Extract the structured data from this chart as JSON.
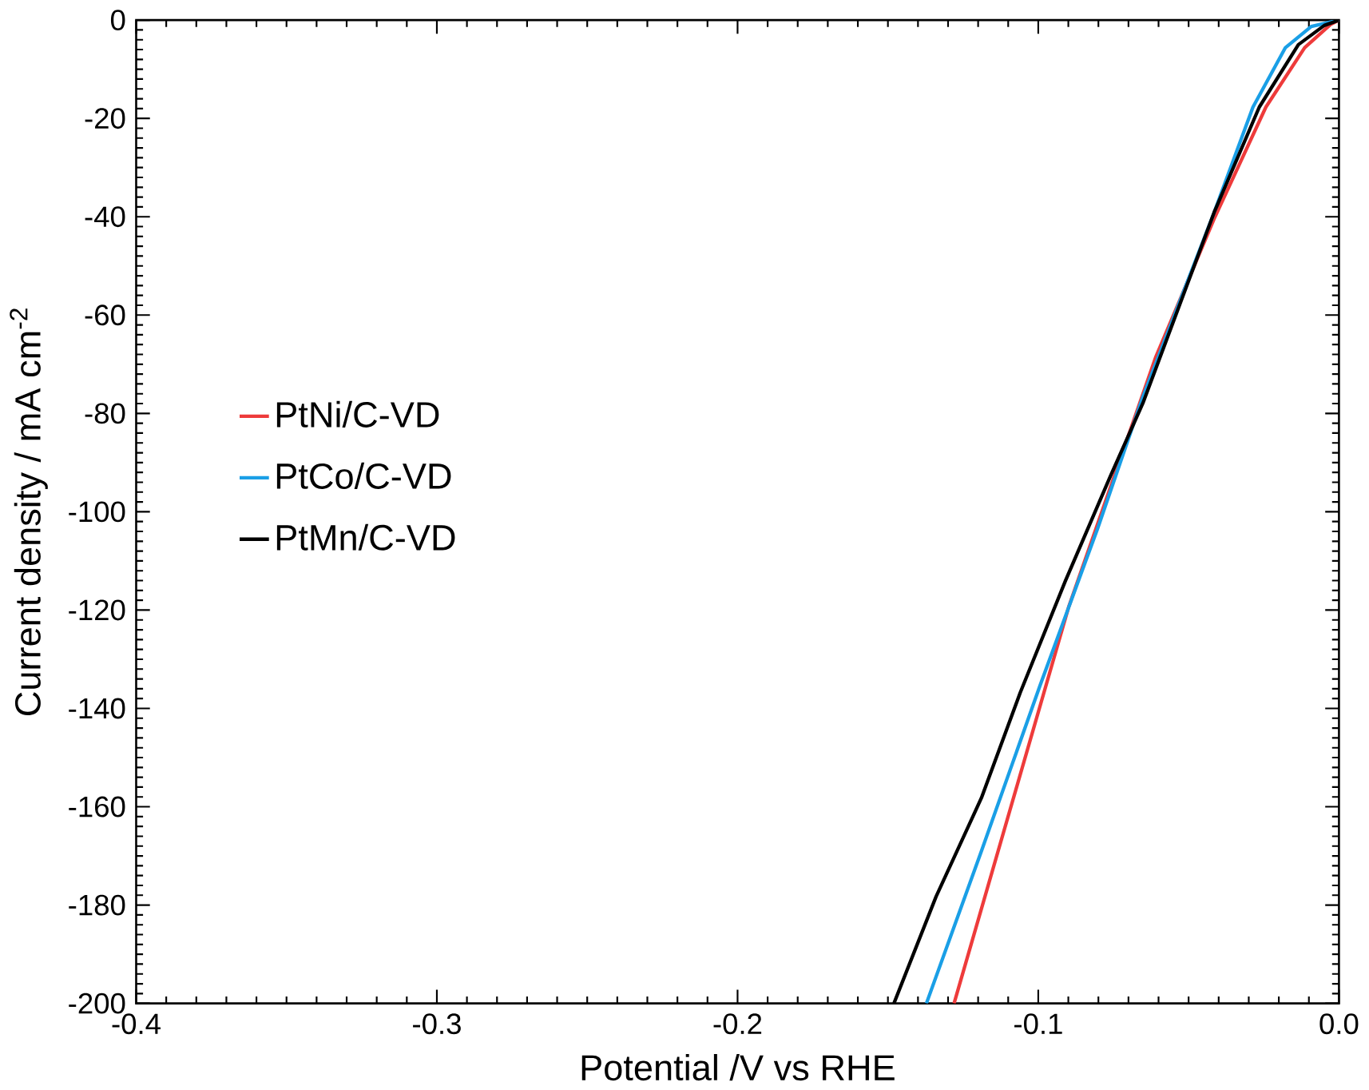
{
  "chart_data": {
    "type": "line",
    "xlabel": "Potential /V vs RHE",
    "ylabel": "Current density / mA cm$^{-2}$",
    "xlim": [
      -0.4,
      0.0
    ],
    "ylim": [
      -200,
      0
    ],
    "xticks": [
      -0.4,
      -0.3,
      -0.2,
      -0.1,
      {
        "value": 0.0,
        "label": "0.0"
      }
    ],
    "yticks": [
      -200,
      -180,
      -160,
      -140,
      -120,
      -100,
      -80,
      -60,
      -40,
      -20,
      0
    ],
    "legend": "left",
    "grid": false,
    "marker": "none",
    "line_style": "solid",
    "series": [
      {
        "name": "PtNi/C-VD",
        "color": "#ee3b3b",
        "x": [
          -0.128,
          -0.0899,
          -0.0609,
          -0.0415,
          -0.0243,
          -0.0114,
          -0.0028,
          0.0
        ],
        "values": [
          -200,
          -119.4,
          -68.5,
          -40.4,
          -17.7,
          -5.6,
          -0.9,
          0
        ]
      },
      {
        "name": "PtCo/C-VD",
        "color": "#1a9fe6",
        "x": [
          -0.1372,
          -0.1189,
          -0.0995,
          -0.0802,
          -0.0652,
          -0.0415,
          -0.0286,
          -0.0178,
          -0.0092,
          0.0
        ],
        "values": [
          -200,
          -169,
          -135.5,
          -103.3,
          -76.6,
          -39.1,
          -17.7,
          -5.6,
          -1.3,
          0
        ]
      },
      {
        "name": "PtMn/C-VD",
        "color": "#000000",
        "x": [
          -0.148,
          -0.134,
          -0.1189,
          -0.106,
          -0.091,
          -0.0759,
          -0.0652,
          -0.0415,
          -0.0265,
          -0.0135,
          -0.0049,
          0.0
        ],
        "values": [
          -200,
          -178.3,
          -158.2,
          -136.8,
          -114.1,
          -92.6,
          -77.9,
          -39.1,
          -17.7,
          -5.0,
          -1.1,
          0
        ]
      }
    ]
  }
}
